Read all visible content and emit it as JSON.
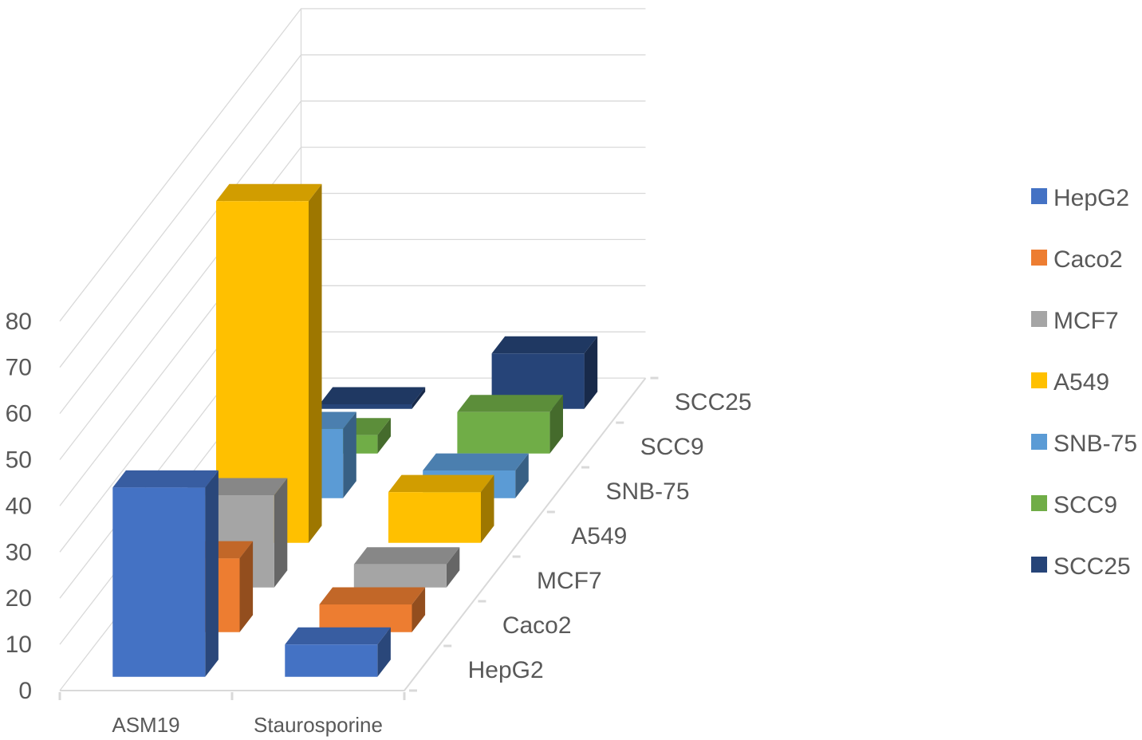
{
  "chart_data": {
    "type": "bar",
    "subtype": "3d-column",
    "categories": [
      "ASM19",
      "Staurosporine"
    ],
    "series": [
      {
        "name": "HepG2",
        "color": "#4472C4",
        "values": [
          41,
          7
        ]
      },
      {
        "name": "Caco2",
        "color": "#ED7D31",
        "values": [
          16,
          6
        ]
      },
      {
        "name": "MCF7",
        "color": "#A5A5A5",
        "values": [
          20,
          5
        ]
      },
      {
        "name": "A549",
        "color": "#FFC000",
        "values": [
          74,
          11
        ]
      },
      {
        "name": "SNB-75",
        "color": "#5B9BD5",
        "values": [
          15,
          6
        ]
      },
      {
        "name": "SCC9",
        "color": "#70AD47",
        "values": [
          4,
          9
        ]
      },
      {
        "name": "SCC25",
        "color": "#264478",
        "values": [
          1,
          12
        ]
      }
    ],
    "yticks": [
      0,
      10,
      20,
      30,
      40,
      50,
      60,
      70,
      80
    ],
    "ylim": [
      0,
      80
    ],
    "grid": true,
    "legend_position": "right",
    "title": "",
    "xlabel": "",
    "ylabel": ""
  }
}
